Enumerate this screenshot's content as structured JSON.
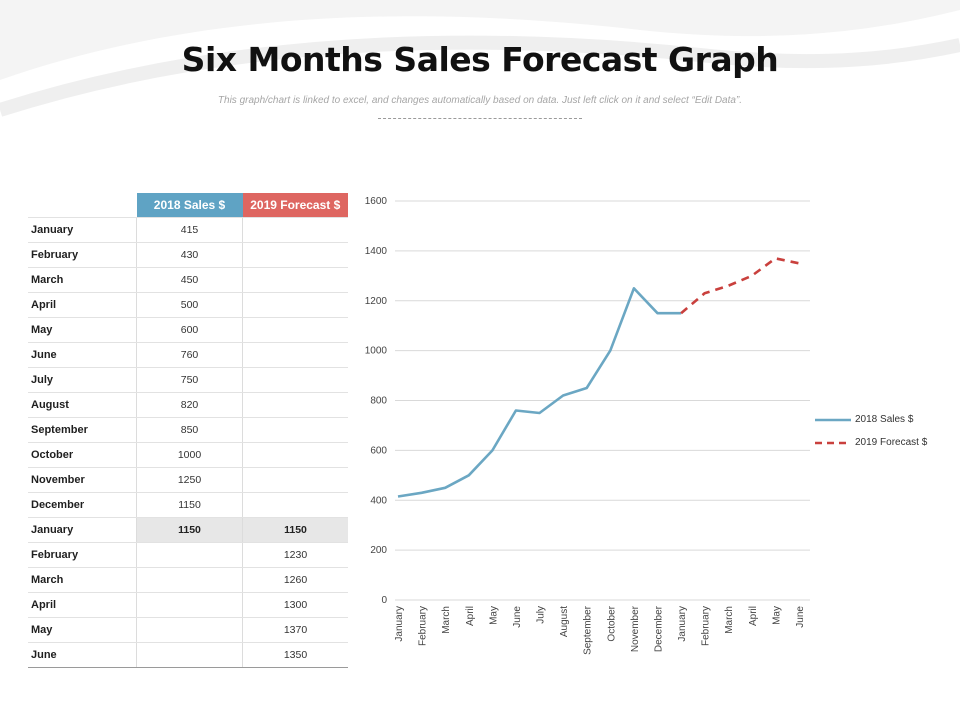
{
  "title": "Six Months Sales Forecast Graph",
  "subtitle": "This graph/chart is linked to excel, and changes automatically based on data. Just left click on it and select “Edit Data”.",
  "table": {
    "headers": [
      "2018  Sales $",
      "2019  Forecast $"
    ],
    "rows": [
      {
        "month": "January",
        "sales": "415",
        "forecast": ""
      },
      {
        "month": "February",
        "sales": "430",
        "forecast": ""
      },
      {
        "month": "March",
        "sales": "450",
        "forecast": ""
      },
      {
        "month": "April",
        "sales": "500",
        "forecast": ""
      },
      {
        "month": "May",
        "sales": "600",
        "forecast": ""
      },
      {
        "month": "June",
        "sales": "760",
        "forecast": ""
      },
      {
        "month": "July",
        "sales": "750",
        "forecast": ""
      },
      {
        "month": "August",
        "sales": "820",
        "forecast": ""
      },
      {
        "month": "September",
        "sales": "850",
        "forecast": ""
      },
      {
        "month": "October",
        "sales": "1000",
        "forecast": ""
      },
      {
        "month": "November",
        "sales": "1250",
        "forecast": ""
      },
      {
        "month": "December",
        "sales": "1150",
        "forecast": ""
      },
      {
        "month": "January",
        "sales": "1150",
        "forecast": "1150",
        "highlight": true
      },
      {
        "month": "February",
        "sales": "",
        "forecast": "1230"
      },
      {
        "month": "March",
        "sales": "",
        "forecast": "1260"
      },
      {
        "month": "April",
        "sales": "",
        "forecast": "1300"
      },
      {
        "month": "May",
        "sales": "",
        "forecast": "1370"
      },
      {
        "month": "June",
        "sales": "",
        "forecast": "1350"
      }
    ]
  },
  "chart_data": {
    "type": "line",
    "title": "",
    "xlabel": "",
    "ylabel": "",
    "categories": [
      "January",
      "February",
      "March",
      "April",
      "May",
      "June",
      "July",
      "August",
      "September",
      "October",
      "November",
      "December",
      "January",
      "February",
      "March",
      "April",
      "May",
      "June"
    ],
    "ylim": [
      0,
      1600
    ],
    "yticks": [
      0,
      200,
      400,
      600,
      800,
      1000,
      1200,
      1400,
      1600
    ],
    "grid": true,
    "legend_position": "right",
    "series": [
      {
        "name": "2018 Sales $",
        "color": "#6ba7c3",
        "style": "solid",
        "values": [
          415,
          430,
          450,
          500,
          600,
          760,
          750,
          820,
          850,
          1000,
          1250,
          1150,
          1150,
          null,
          null,
          null,
          null,
          null
        ]
      },
      {
        "name": "2019 Forecast $",
        "color": "#c9403d",
        "style": "dashed",
        "values": [
          null,
          null,
          null,
          null,
          null,
          null,
          null,
          null,
          null,
          null,
          null,
          null,
          1150,
          1230,
          1260,
          1300,
          1370,
          1350
        ]
      }
    ]
  }
}
